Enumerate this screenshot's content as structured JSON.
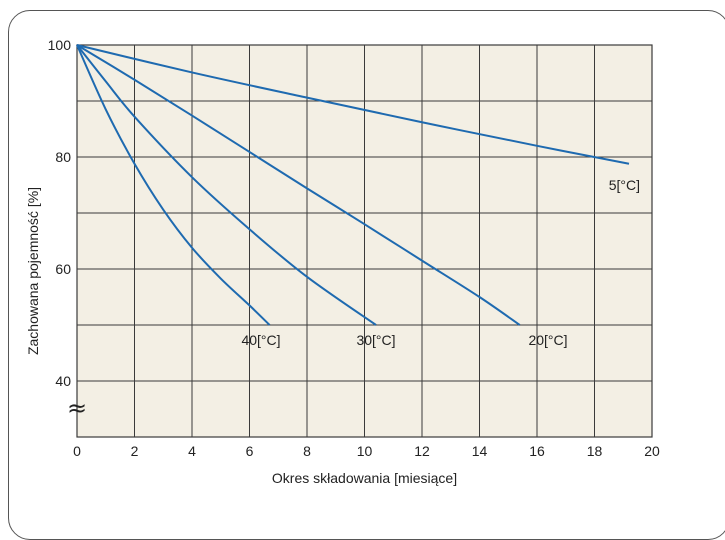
{
  "colors": {
    "plot_background": "#f3efe4",
    "grid": "#3a3a3a",
    "series_line": "#1e6ab0",
    "text": "#222222"
  },
  "chart_data": {
    "type": "line",
    "title": "",
    "xlabel": "Okres składowania [miesiące]",
    "ylabel": "Zachowana pojemność [%]",
    "xlim": [
      0,
      20
    ],
    "ylim": [
      30,
      100
    ],
    "x_ticks": [
      "0",
      "2",
      "4",
      "6",
      "8",
      "10",
      "12",
      "14",
      "16",
      "18",
      "20"
    ],
    "y_ticks": [
      "40",
      "60",
      "80",
      "100"
    ],
    "axis_break_symbol": "≈",
    "grid": true,
    "series": [
      {
        "name": "5[°C]",
        "x": [
          0,
          4,
          8,
          12,
          16,
          19.2
        ],
        "y": [
          100,
          95.1,
          90.6,
          86.2,
          82.0,
          78.8
        ]
      },
      {
        "name": "20[°C]",
        "x": [
          0,
          2,
          4,
          6,
          8,
          10,
          12,
          14,
          15.4
        ],
        "y": [
          100,
          93.8,
          87.4,
          80.9,
          74.4,
          68.0,
          61.5,
          55.0,
          50.0
        ]
      },
      {
        "name": "30[°C]",
        "x": [
          0,
          1,
          2,
          4,
          6,
          8,
          10.4
        ],
        "y": [
          100,
          93.5,
          87.2,
          76.4,
          67.1,
          58.6,
          50.0
        ]
      },
      {
        "name": "40[°C]",
        "x": [
          0,
          1,
          2,
          3,
          4,
          5,
          6,
          6.7
        ],
        "y": [
          100,
          88.5,
          78.8,
          70.6,
          63.8,
          58.3,
          53.5,
          50.0
        ]
      }
    ]
  }
}
